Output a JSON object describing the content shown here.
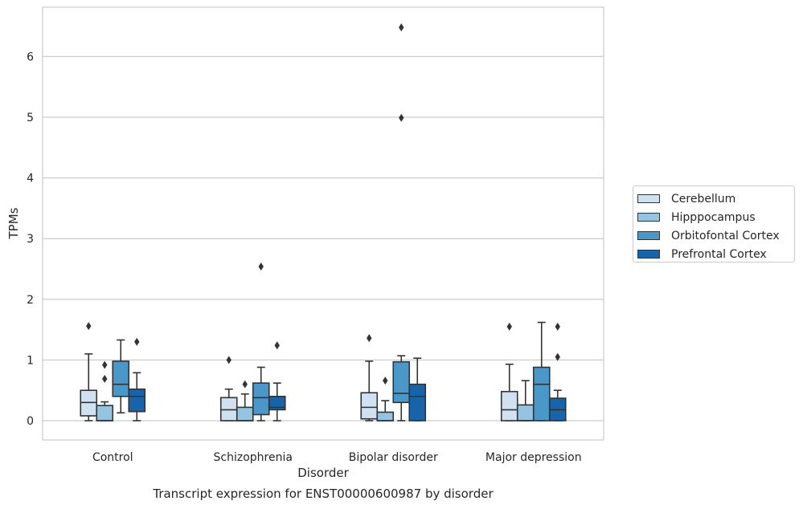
{
  "chart_data": {
    "type": "box",
    "title": "Transcript expression for ENST00000600987 by disorder",
    "xlabel": "Disorder",
    "ylabel": "TPMs",
    "ylim": [
      -0.32,
      6.8
    ],
    "yticks": [
      0,
      1,
      2,
      3,
      4,
      5,
      6
    ],
    "grid": true,
    "legend_placement": "outside-right",
    "categories": [
      "Control",
      "Schizophrenia",
      "Bipolar disorder",
      "Major depression"
    ],
    "series": [
      {
        "name": "Cerebellum",
        "color": "#d0e1f2",
        "boxes": [
          {
            "whislo": 0.0,
            "q1": 0.08,
            "med": 0.3,
            "q3": 0.5,
            "whishi": 1.1,
            "fliers": [
              1.56
            ]
          },
          {
            "whislo": 0.0,
            "q1": 0.0,
            "med": 0.18,
            "q3": 0.38,
            "whishi": 0.52,
            "fliers": [
              1.0
            ]
          },
          {
            "whislo": 0.0,
            "q1": 0.03,
            "med": 0.22,
            "q3": 0.46,
            "whishi": 0.98,
            "fliers": [
              1.36
            ]
          },
          {
            "whislo": 0.0,
            "q1": 0.0,
            "med": 0.18,
            "q3": 0.48,
            "whishi": 0.93,
            "fliers": [
              1.55
            ]
          }
        ]
      },
      {
        "name": "Hipppocampus",
        "color": "#94c4df",
        "boxes": [
          {
            "whislo": 0.0,
            "q1": 0.0,
            "med": 0.0,
            "q3": 0.25,
            "whishi": 0.31,
            "fliers": [
              0.69,
              0.92
            ]
          },
          {
            "whislo": 0.0,
            "q1": 0.0,
            "med": 0.0,
            "q3": 0.22,
            "whishi": 0.44,
            "fliers": [
              0.6
            ]
          },
          {
            "whislo": 0.0,
            "q1": 0.0,
            "med": 0.0,
            "q3": 0.14,
            "whishi": 0.33,
            "fliers": [
              0.66
            ]
          },
          {
            "whislo": 0.0,
            "q1": 0.0,
            "med": 0.0,
            "q3": 0.26,
            "whishi": 0.66,
            "fliers": []
          }
        ]
      },
      {
        "name": "Orbitofontal Cortex",
        "color": "#4a98c9",
        "boxes": [
          {
            "whislo": 0.13,
            "q1": 0.4,
            "med": 0.6,
            "q3": 0.98,
            "whishi": 1.33,
            "fliers": []
          },
          {
            "whislo": 0.0,
            "q1": 0.1,
            "med": 0.38,
            "q3": 0.62,
            "whishi": 0.88,
            "fliers": [
              2.54
            ]
          },
          {
            "whislo": 0.0,
            "q1": 0.3,
            "med": 0.45,
            "q3": 0.97,
            "whishi": 1.07,
            "fliers": [
              4.99,
              6.48
            ]
          },
          {
            "whislo": 0.0,
            "q1": 0.0,
            "med": 0.6,
            "q3": 0.88,
            "whishi": 1.62,
            "fliers": []
          }
        ]
      },
      {
        "name": "Prefrontal Cortex",
        "color": "#1764ab",
        "boxes": [
          {
            "whislo": 0.0,
            "q1": 0.15,
            "med": 0.4,
            "q3": 0.52,
            "whishi": 0.79,
            "fliers": [
              1.3
            ]
          },
          {
            "whislo": 0.0,
            "q1": 0.18,
            "med": 0.22,
            "q3": 0.4,
            "whishi": 0.62,
            "fliers": [
              1.24
            ]
          },
          {
            "whislo": 0.0,
            "q1": 0.0,
            "med": 0.4,
            "q3": 0.6,
            "whishi": 1.03,
            "fliers": []
          },
          {
            "whislo": 0.0,
            "q1": 0.0,
            "med": 0.18,
            "q3": 0.37,
            "whishi": 0.5,
            "fliers": [
              1.05,
              1.55
            ]
          }
        ]
      }
    ]
  }
}
